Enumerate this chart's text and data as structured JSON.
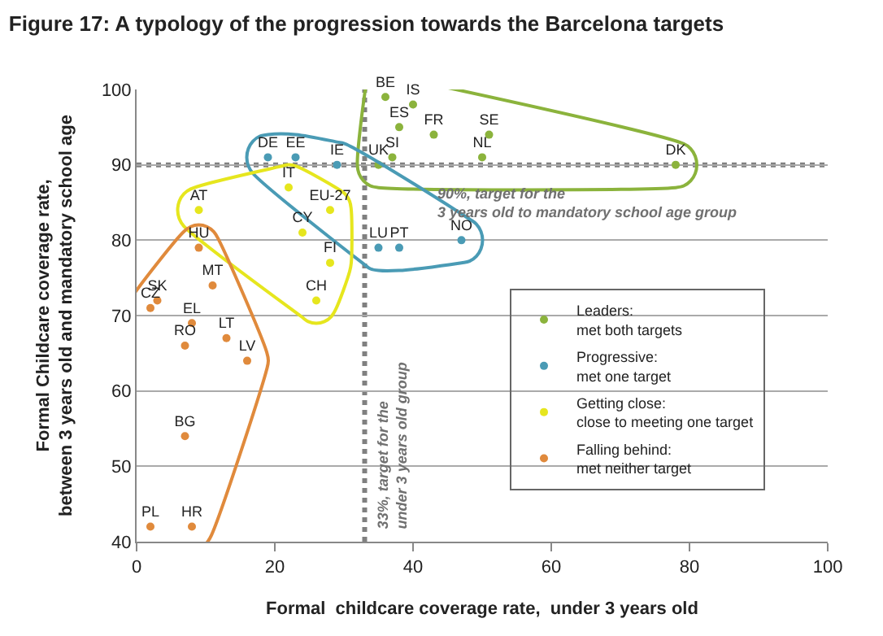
{
  "chart_data": {
    "type": "scatter",
    "title": "Figure 17: A typology of the progression towards the Barcelona targets",
    "xlabel": "Formal  childcare coverage rate,  under 3 years old",
    "ylabel": "Formal Childcare coverage rate,\nbetween 3 years old and mandatory school age",
    "xlim": [
      0,
      100
    ],
    "ylim": [
      40,
      100
    ],
    "xticks": [
      0,
      20,
      40,
      60,
      80,
      100
    ],
    "yticks": [
      40,
      50,
      60,
      70,
      80,
      90,
      100
    ],
    "grid": "y",
    "legend": "bottom right",
    "marker": "circle",
    "ref_lines": [
      {
        "axis": "y",
        "value": 90,
        "label": "90%, target for the\n3 years old to mandatory school age group",
        "color": "#808080",
        "line_style": "dotted"
      },
      {
        "axis": "x",
        "value": 33,
        "label": "33%, target for the\nunder 3 years old group",
        "color": "#808080",
        "line_style": "dotted"
      }
    ],
    "series": [
      {
        "name": "Leaders:\nmet both targets",
        "color": "#8bb33c",
        "x": [
          36,
          40,
          38,
          43,
          51,
          50,
          37,
          35,
          78
        ],
        "values": [
          99,
          98,
          95,
          94,
          94,
          91,
          91,
          90,
          90
        ],
        "value_labels": [
          "BE",
          "IS",
          "ES",
          "FR",
          "SE",
          "NL",
          "SI",
          "UK",
          "DK"
        ]
      },
      {
        "name": "Progressive:\nmet one target",
        "color": "#4a9bb5",
        "x": [
          19,
          23,
          29,
          35,
          38,
          47
        ],
        "values": [
          91,
          91,
          90,
          79,
          79,
          80
        ],
        "value_labels": [
          "DE",
          "EE",
          "IE",
          "LU",
          "PT",
          "NO"
        ]
      },
      {
        "name": "Getting close:\nclose to meeting one target",
        "color": "#e6e61e",
        "x": [
          22,
          28,
          9,
          24,
          28,
          26
        ],
        "values": [
          87,
          84,
          84,
          81,
          77,
          72
        ],
        "value_labels": [
          "IT",
          "EU-27",
          "AT",
          "CY",
          "FI",
          "CH"
        ]
      },
      {
        "name": "Falling behind:\nmet neither target",
        "color": "#e08a3c",
        "x": [
          9,
          11,
          3,
          2,
          8,
          7,
          13,
          16,
          7,
          2,
          8
        ],
        "values": [
          79,
          74,
          72,
          71,
          69,
          66,
          67,
          64,
          54,
          42,
          42
        ],
        "value_labels": [
          "HU",
          "MT",
          "SK",
          "CZ",
          "EL",
          "RO",
          "LT",
          "LV",
          "BG",
          "PL",
          "HR"
        ]
      }
    ]
  }
}
